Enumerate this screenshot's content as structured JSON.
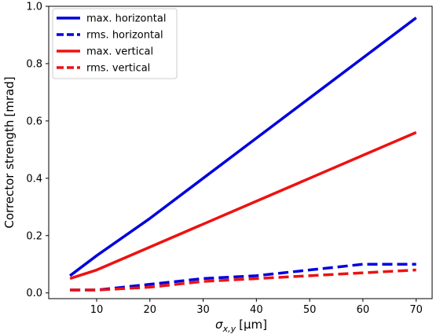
{
  "chart_data": {
    "type": "line",
    "title": "",
    "xlabel_main": "σ",
    "xlabel_sub": "x,y",
    "xlabel_unit": "[μm]",
    "ylabel_text": "Corrector strength",
    "ylabel_unit": "[mrad]",
    "xlim": [
      1,
      73
    ],
    "ylim": [
      -0.02,
      1.0
    ],
    "xticks": [
      10,
      20,
      30,
      40,
      50,
      60,
      70
    ],
    "yticks": [
      0.0,
      0.2,
      0.4,
      0.6,
      0.8,
      1.0
    ],
    "xtick_labels": [
      "10",
      "20",
      "30",
      "40",
      "50",
      "60",
      "70"
    ],
    "ytick_labels": [
      "0.0",
      "0.2",
      "0.4",
      "0.6",
      "0.8",
      "1.0"
    ],
    "legend_position": "upper-left",
    "x": [
      5,
      10,
      20,
      30,
      40,
      50,
      60,
      70
    ],
    "series": [
      {
        "name": "max. horizontal",
        "color": "#0000dd",
        "style": "solid",
        "values": [
          0.06,
          0.13,
          0.26,
          0.4,
          0.54,
          0.68,
          0.82,
          0.96
        ]
      },
      {
        "name": "rms. horizontal",
        "color": "#0000dd",
        "style": "dashed",
        "values": [
          0.01,
          0.01,
          0.03,
          0.05,
          0.06,
          0.08,
          0.1,
          0.1
        ]
      },
      {
        "name": "max. vertical",
        "color": "#ee1111",
        "style": "solid",
        "values": [
          0.05,
          0.08,
          0.16,
          0.24,
          0.32,
          0.4,
          0.48,
          0.56
        ]
      },
      {
        "name": "rms. vertical",
        "color": "#ee1111",
        "style": "dashed",
        "values": [
          0.01,
          0.01,
          0.02,
          0.04,
          0.05,
          0.06,
          0.07,
          0.08
        ]
      }
    ]
  }
}
